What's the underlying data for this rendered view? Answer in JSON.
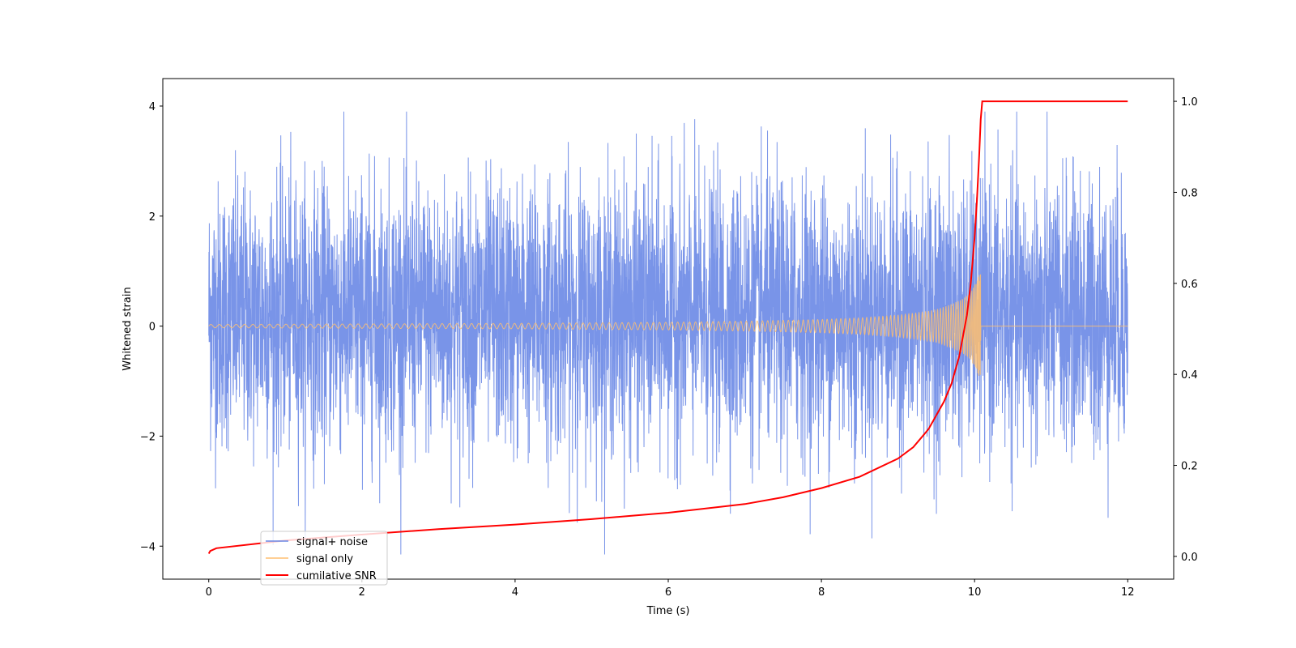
{
  "chart_data": {
    "type": "line",
    "title": "",
    "xlabel": "Time (s)",
    "ylabel": "Whitened strain",
    "y2label": "",
    "xlim": [
      -0.6,
      12.6
    ],
    "ylim": [
      -4.6,
      4.5
    ],
    "y2lim": [
      -0.05,
      1.05
    ],
    "xticks": [
      0,
      2,
      4,
      6,
      8,
      10,
      12
    ],
    "yticks": [
      -4,
      -2,
      0,
      2,
      4
    ],
    "y2ticks": [
      0.0,
      0.2,
      0.4,
      0.6,
      0.8,
      1.0
    ],
    "y2tick_labels": [
      "0.0",
      "0.2",
      "0.4",
      "0.6",
      "0.8",
      "1.0"
    ],
    "grid": false,
    "legend_position": "lower-left",
    "noise": {
      "duration_s": 12,
      "typical_band": [
        -1.4,
        1.8
      ],
      "min": -4.15,
      "max": 3.9
    },
    "chirp": {
      "merger_time_s": 10.08,
      "envelope_t": [
        0,
        2,
        4,
        6,
        7,
        8,
        8.5,
        9,
        9.3,
        9.5,
        9.7,
        9.85,
        9.95,
        10.0,
        10.05,
        10.08
      ],
      "envelope_amp": [
        0.03,
        0.04,
        0.05,
        0.07,
        0.09,
        0.12,
        0.15,
        0.2,
        0.25,
        0.3,
        0.4,
        0.5,
        0.62,
        0.75,
        0.9,
        1.0
      ]
    },
    "snr": {
      "x": [
        0,
        0.02,
        0.1,
        1,
        2,
        3,
        4,
        5,
        6,
        7,
        7.5,
        8,
        8.5,
        9,
        9.2,
        9.4,
        9.6,
        9.7,
        9.8,
        9.9,
        9.95,
        10.0,
        10.03,
        10.06,
        10.08,
        10.1,
        12.0
      ],
      "y": [
        0.006,
        0.012,
        0.018,
        0.035,
        0.048,
        0.06,
        0.07,
        0.082,
        0.096,
        0.115,
        0.13,
        0.15,
        0.175,
        0.215,
        0.24,
        0.28,
        0.34,
        0.38,
        0.44,
        0.53,
        0.6,
        0.7,
        0.78,
        0.88,
        0.96,
        1.0,
        1.0
      ]
    },
    "series": [
      {
        "name": "signal+ noise",
        "color": "#6a88e6"
      },
      {
        "name": "signal only",
        "color": "#ffbf70"
      },
      {
        "name": "cumilative SNR",
        "color": "#ff0000"
      }
    ]
  }
}
